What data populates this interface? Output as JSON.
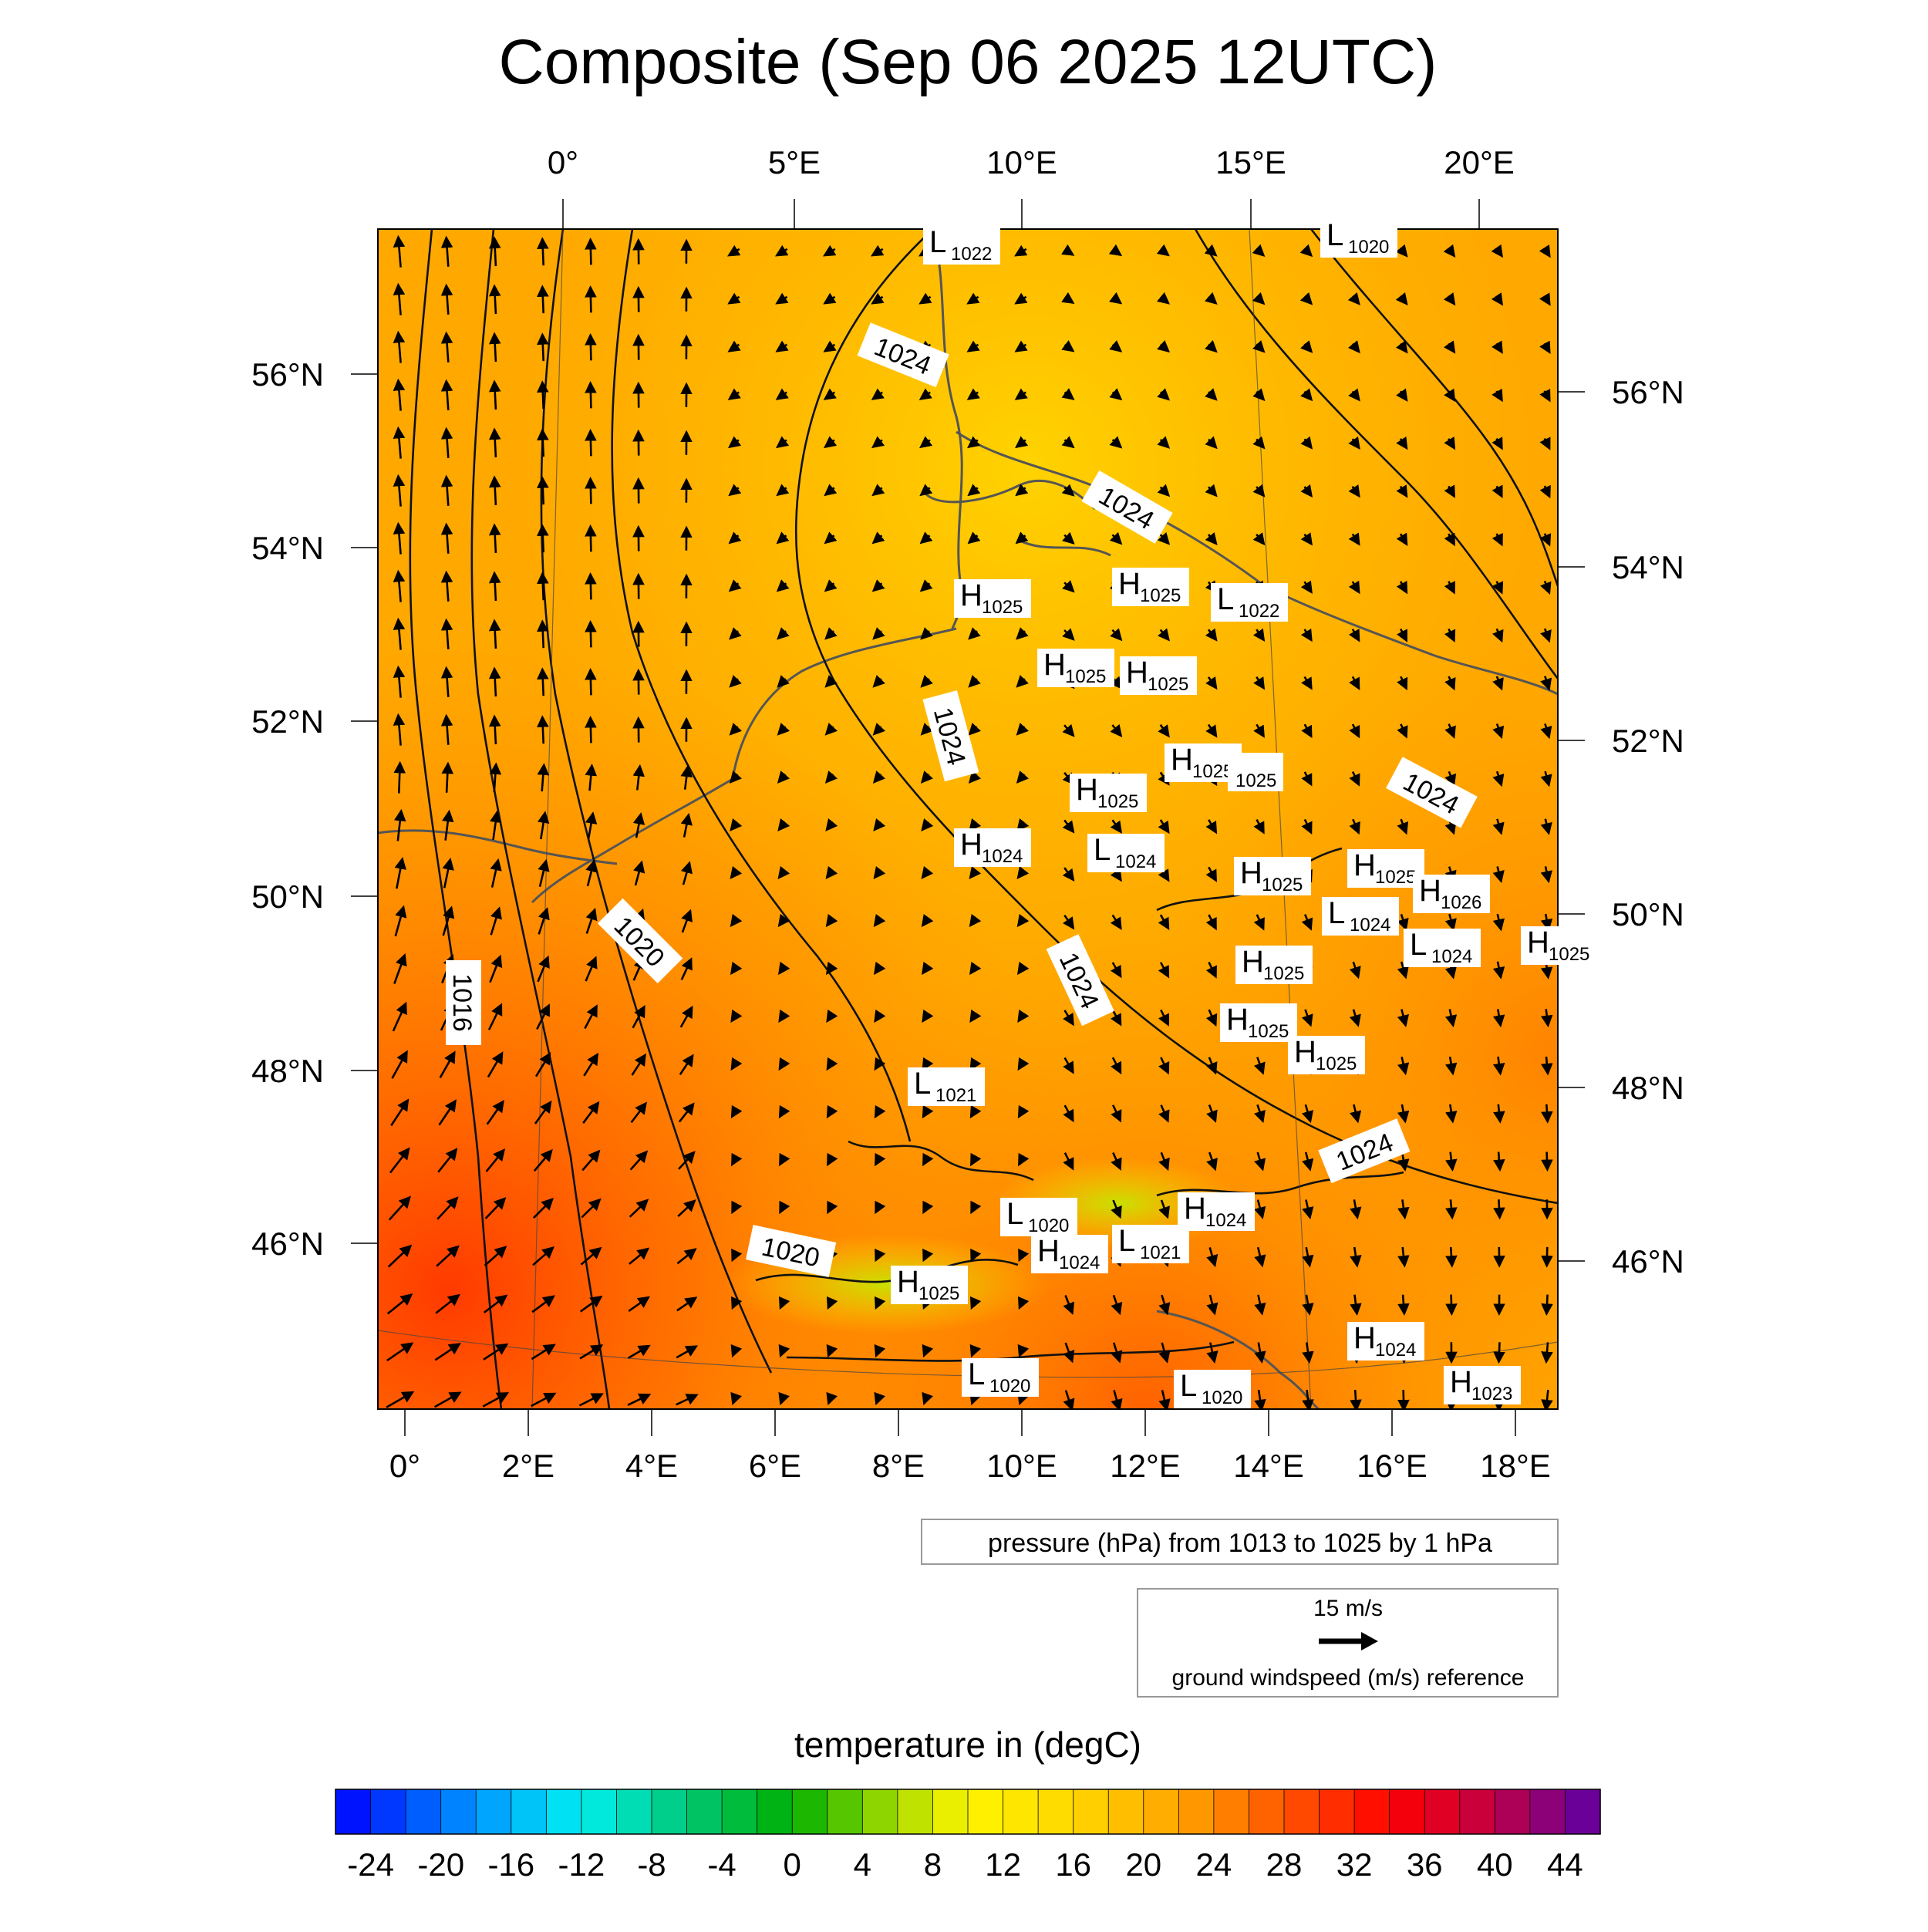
{
  "title": "Composite (Sep 06 2025 12UTC)",
  "map": {
    "top_lon_labels": [
      "0°",
      "5°E",
      "10°E",
      "15°E",
      "20°E"
    ],
    "bottom_lon_labels": [
      "0°",
      "2°E",
      "4°E",
      "6°E",
      "8°E",
      "10°E",
      "12°E",
      "14°E",
      "16°E",
      "18°E"
    ],
    "left_lat_labels": [
      "56°N",
      "54°N",
      "52°N",
      "50°N",
      "48°N",
      "46°N"
    ],
    "right_lat_labels": [
      "56°N",
      "54°N",
      "52°N",
      "50°N",
      "48°N",
      "46°N"
    ],
    "isobar_labels": [
      "1024",
      "1024",
      "1024",
      "1024",
      "1024",
      "1024",
      "1020",
      "1020",
      "1016"
    ],
    "pressure_centers": [
      {
        "type": "L",
        "value": "1022"
      },
      {
        "type": "L",
        "value": "1020"
      },
      {
        "type": "H",
        "value": "1025"
      },
      {
        "type": "H",
        "value": "1025"
      },
      {
        "type": "L",
        "value": "1022"
      },
      {
        "type": "H",
        "value": "1025"
      },
      {
        "type": "H",
        "value": "1025"
      },
      {
        "type": "H",
        "value": "1025"
      },
      {
        "type": "",
        "value": "1025"
      },
      {
        "type": "H",
        "value": "1025"
      },
      {
        "type": "H",
        "value": "1024"
      },
      {
        "type": "L",
        "value": "1024"
      },
      {
        "type": "H",
        "value": "1025"
      },
      {
        "type": "H",
        "value": "1025"
      },
      {
        "type": "H",
        "value": "1026"
      },
      {
        "type": "L",
        "value": "1024"
      },
      {
        "type": "L",
        "value": "1024"
      },
      {
        "type": "H",
        "value": "1025"
      },
      {
        "type": "H",
        "value": "1025"
      },
      {
        "type": "H",
        "value": "1025"
      },
      {
        "type": "H",
        "value": "1025"
      },
      {
        "type": "L",
        "value": "1021"
      },
      {
        "type": "L",
        "value": "1020"
      },
      {
        "type": "H",
        "value": "1024"
      },
      {
        "type": "H",
        "value": "1024"
      },
      {
        "type": "L",
        "value": "1021"
      },
      {
        "type": "H",
        "value": "1025"
      },
      {
        "type": "H",
        "value": "1024"
      },
      {
        "type": "L",
        "value": "1020"
      },
      {
        "type": "L",
        "value": "1020"
      },
      {
        "type": "H",
        "value": "1023"
      }
    ]
  },
  "pressure_info": "pressure (hPa) from 1013 to 1025 by 1 hPa",
  "wind_reference": {
    "speed": "15 m/s",
    "caption": "ground windspeed (m/s) reference"
  },
  "colorbar": {
    "title": "temperature in (degC)",
    "tick_labels": [
      "-24",
      "-20",
      "-16",
      "-12",
      "-8",
      "-4",
      "0",
      "4",
      "8",
      "12",
      "16",
      "20",
      "24",
      "28",
      "32",
      "36",
      "40",
      "44"
    ],
    "min": -26,
    "max": 46,
    "step": 2
  }
}
